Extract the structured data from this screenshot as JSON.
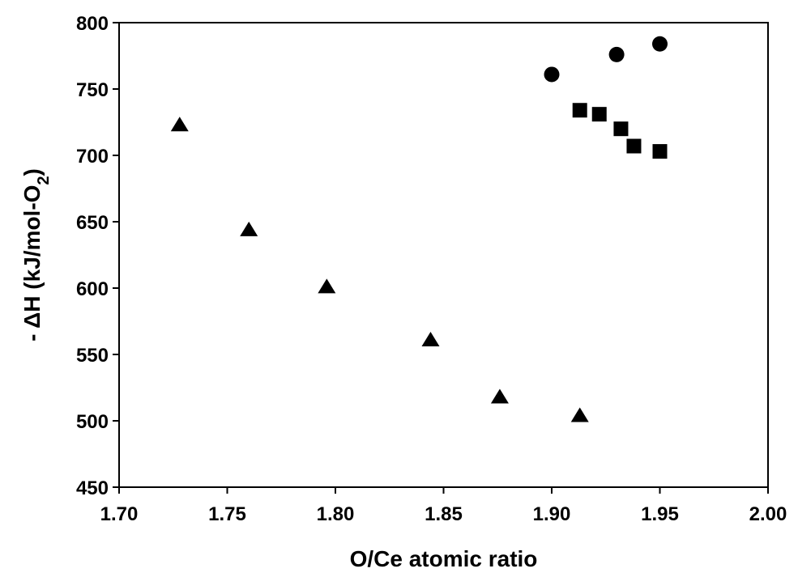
{
  "chart_data": {
    "type": "scatter",
    "xlabel": "O/Ce atomic ratio",
    "ylabel": {
      "prefix": "- ΔH (kJ/mol-O",
      "subscript": "2",
      "suffix": ")"
    },
    "xlim": [
      1.7,
      2.0
    ],
    "ylim": [
      450,
      800
    ],
    "x_ticks": [
      "1.70",
      "1.75",
      "1.80",
      "1.85",
      "1.90",
      "1.95",
      "2.00"
    ],
    "y_ticks": [
      "450",
      "500",
      "550",
      "600",
      "650",
      "700",
      "750",
      "800"
    ],
    "grid": false,
    "series": [
      {
        "marker": "triangle",
        "color": "#000000",
        "points": [
          {
            "x": 1.728,
            "y": 723
          },
          {
            "x": 1.76,
            "y": 644
          },
          {
            "x": 1.796,
            "y": 601
          },
          {
            "x": 1.844,
            "y": 561
          },
          {
            "x": 1.876,
            "y": 518
          },
          {
            "x": 1.913,
            "y": 504
          }
        ]
      },
      {
        "marker": "square",
        "color": "#000000",
        "points": [
          {
            "x": 1.913,
            "y": 734
          },
          {
            "x": 1.922,
            "y": 731
          },
          {
            "x": 1.932,
            "y": 720
          },
          {
            "x": 1.938,
            "y": 707
          },
          {
            "x": 1.95,
            "y": 703
          }
        ]
      },
      {
        "marker": "circle",
        "color": "#000000",
        "points": [
          {
            "x": 1.9,
            "y": 761
          },
          {
            "x": 1.93,
            "y": 776
          },
          {
            "x": 1.95,
            "y": 784
          }
        ]
      }
    ]
  }
}
